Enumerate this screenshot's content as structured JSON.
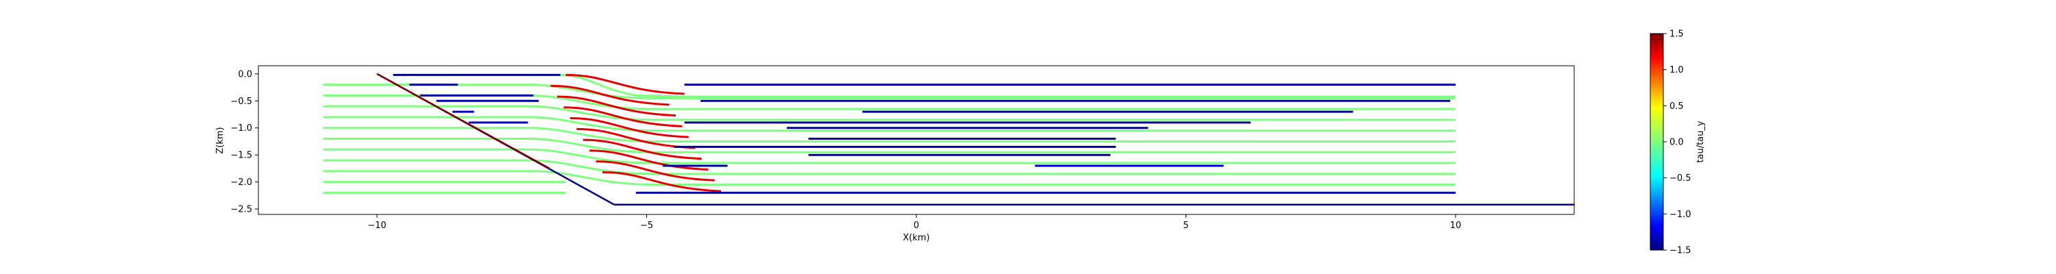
{
  "chart_data": {
    "type": "line",
    "title": "",
    "xlabel": "X(km)",
    "ylabel": "Z(km)",
    "xlim": [
      -12.2,
      12.2
    ],
    "ylim": [
      -2.6,
      0.15
    ],
    "xticks": [
      -10,
      -5,
      0,
      5,
      10
    ],
    "xtick_labels": [
      "−10",
      "−5",
      "0",
      "5",
      "10"
    ],
    "yticks": [
      0.0,
      -0.5,
      -1.0,
      -1.5,
      -2.0,
      -2.5
    ],
    "ytick_labels": [
      "0.0",
      "−0.5",
      "−1.0",
      "−1.5",
      "−2.0",
      "−2.5"
    ],
    "colorbar": {
      "label": "tau/tau_y",
      "range": [
        -1.5,
        1.5
      ],
      "ticks": [
        1.5,
        1.0,
        0.5,
        0.0,
        -0.5,
        -1.0,
        -1.5
      ],
      "tick_labels": [
        "1.5",
        "1.0",
        "0.5",
        "0.0",
        "−0.5",
        "−1.0",
        "−1.5"
      ],
      "colormap": "jet"
    },
    "geometry": {
      "slope_line": {
        "x": [
          -10.0,
          -5.6
        ],
        "z": [
          0.0,
          -2.42
        ]
      },
      "bottom_line": {
        "x": [
          -5.6,
          12.2
        ],
        "z": [
          -2.42,
          -2.42
        ]
      },
      "dark_red_segment": {
        "x": [
          -10.0,
          -6.8
        ],
        "z": [
          0.0,
          -1.75
        ]
      }
    },
    "streamlines": [
      {
        "z": -0.02,
        "x_start": -9.7,
        "x_end": 10.0,
        "bend_x": -6.6,
        "bend_top": true
      },
      {
        "z": -0.2,
        "x_start": -11.0,
        "x_end": 10.0
      },
      {
        "z": -0.4,
        "x_start": -11.0,
        "x_end": 10.0
      },
      {
        "z": -0.6,
        "x_start": -11.0,
        "x_end": 10.0
      },
      {
        "z": -0.8,
        "x_start": -11.0,
        "x_end": 10.0
      },
      {
        "z": -1.0,
        "x_start": -11.0,
        "x_end": 10.0
      },
      {
        "z": -1.2,
        "x_start": -11.0,
        "x_end": 10.0
      },
      {
        "z": -1.4,
        "x_start": -11.0,
        "x_end": 10.0
      },
      {
        "z": -1.6,
        "x_start": -11.0,
        "x_end": 10.0
      },
      {
        "z": -1.8,
        "x_start": -11.0,
        "x_end": 10.0
      },
      {
        "z": -2.0,
        "x_start": -11.0,
        "x_end": 10.0
      },
      {
        "z": -2.2,
        "x_start": -11.0,
        "x_end": 10.0
      }
    ],
    "segments": [
      {
        "z": -0.02,
        "x": [
          -9.7,
          -6.6
        ],
        "tau": -1.5
      },
      {
        "z": -0.2,
        "x": [
          -9.4,
          -8.5
        ],
        "tau": -1.4
      },
      {
        "z": -0.2,
        "x": [
          -4.3,
          10.0
        ],
        "tau": -1.4
      },
      {
        "z": -0.4,
        "x": [
          -9.2,
          -7.1
        ],
        "tau": -1.4
      },
      {
        "z": -0.5,
        "x": [
          -8.9,
          -7.0
        ],
        "tau": -1.4
      },
      {
        "z": -0.5,
        "x": [
          -4.0,
          9.9
        ],
        "tau": -1.4
      },
      {
        "z": -0.7,
        "x": [
          -8.6,
          -8.2
        ],
        "tau": -1.3
      },
      {
        "z": -0.7,
        "x": [
          -1.0,
          8.1
        ],
        "tau": -1.4
      },
      {
        "z": -0.9,
        "x": [
          -8.3,
          -7.2
        ],
        "tau": -1.3
      },
      {
        "z": -0.9,
        "x": [
          -4.3,
          6.2
        ],
        "tau": -1.4
      },
      {
        "z": -1.0,
        "x": [
          -2.4,
          4.3
        ],
        "tau": -1.4
      },
      {
        "z": -1.2,
        "x": [
          -2.0,
          3.7
        ],
        "tau": -1.4
      },
      {
        "z": -1.35,
        "x": [
          -4.5,
          3.7
        ],
        "tau": -1.4
      },
      {
        "z": -1.5,
        "x": [
          -2.0,
          3.6
        ],
        "tau": -1.4
      },
      {
        "z": -1.7,
        "x": [
          -4.7,
          -3.5
        ],
        "tau": -1.4
      },
      {
        "z": -1.7,
        "x": [
          2.2,
          5.7
        ],
        "tau": -1.2
      },
      {
        "z": -2.2,
        "x": [
          -5.2,
          10.0
        ],
        "tau": -1.4
      }
    ],
    "red_curves_count": 10,
    "grid": false
  }
}
